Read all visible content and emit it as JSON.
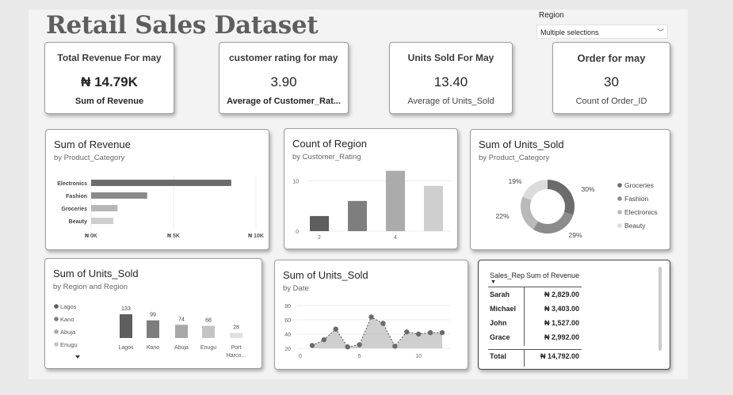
{
  "page": {
    "title": "Retail Sales Dataset"
  },
  "slicer": {
    "label": "Region",
    "value": "Multiple selections"
  },
  "kpis": [
    {
      "title": "Total Revenue For may",
      "value": "₦ 14.79K",
      "subtitle": "Sum of Revenue"
    },
    {
      "title": "customer rating  for may",
      "value": "3.90",
      "subtitle": "Average of Customer_Rat..."
    },
    {
      "title": "Units Sold For May",
      "value": "13.40",
      "subtitle": "Average of Units_Sold"
    },
    {
      "title": "Order for may",
      "value": "30",
      "subtitle": "Count of Order_ID"
    }
  ],
  "revenue_by_category": {
    "title": "Sum of Revenue",
    "subtitle": "by Product_Category",
    "x_ticks": [
      "₦ 0K",
      "₦ 5K",
      "₦ 10K"
    ]
  },
  "region_by_rating": {
    "title": "Count of Region",
    "subtitle": "by Customer_Rating",
    "y_ticks": [
      "0",
      "10"
    ],
    "x_ticks": [
      "2",
      "4"
    ]
  },
  "units_by_category": {
    "title": "Sum of Units_Sold",
    "subtitle": "by Product_Category",
    "slice_labels": [
      "30%",
      "29%",
      "22%",
      "19%"
    ]
  },
  "units_by_region": {
    "title": "Sum of Units_Sold",
    "subtitle": "by Region and Region",
    "legend": [
      "Lagos",
      "Kano",
      "Abuja",
      "Enugu"
    ],
    "x_labels": [
      "Lagos",
      "Kano",
      "Abuja",
      "Enugu",
      "Port",
      "Harco..."
    ]
  },
  "units_by_date": {
    "title": "Sum of Units_Sold",
    "subtitle": "by Date",
    "y_ticks": [
      "20",
      "40",
      "60",
      "80"
    ],
    "x_ticks": [
      "0",
      "5",
      "10"
    ]
  },
  "sales_table": {
    "columns": [
      "Sales_Rep",
      "Sum of Revenue"
    ],
    "rows": [
      {
        "rep": "Sarah",
        "revenue": "₦ 2,829.00"
      },
      {
        "rep": "Michael",
        "revenue": "₦ 3,403.00"
      },
      {
        "rep": "John",
        "revenue": "₦ 1,527.00"
      },
      {
        "rep": "Grace",
        "revenue": "₦ 2,992.00"
      }
    ],
    "total_label": "Total",
    "total_value": "₦ 14,792.00"
  },
  "chart_data": [
    {
      "type": "bar",
      "orientation": "horizontal",
      "title": "Sum of Revenue",
      "categories": [
        "Electronics",
        "Fashion",
        "Groceries",
        "Beauty"
      ],
      "values": [
        8500,
        3400,
        1600,
        1350
      ],
      "xlim": [
        0,
        10000
      ],
      "colors": [
        "#6b6b6b",
        "#8a8a8a",
        "#b6b6b6",
        "#cfcfcf"
      ]
    },
    {
      "type": "bar",
      "title": "Count of Region",
      "x": [
        2,
        3,
        4,
        5
      ],
      "values": [
        3,
        6,
        12,
        9
      ],
      "ylim": [
        0,
        14
      ],
      "colors": [
        "#5e5e5e",
        "#7e7e7e",
        "#ababab",
        "#cfcfcf"
      ]
    },
    {
      "type": "pie",
      "donut": true,
      "title": "Sum of Units_Sold",
      "categories": [
        "Groceries",
        "Fashion",
        "Electronics",
        "Beauty"
      ],
      "values": [
        30,
        29,
        22,
        19
      ],
      "legend_position": "right",
      "colors": [
        "#6b6b6b",
        "#8c8c8c",
        "#b9b9b9",
        "#dcdcdc"
      ]
    },
    {
      "type": "bar",
      "title": "Sum of Units_Sold",
      "categories": [
        "Lagos",
        "Kano",
        "Abuja",
        "Enugu",
        "Port Harco..."
      ],
      "values": [
        133,
        99,
        74,
        68,
        28
      ],
      "legend_position": "left",
      "colors": [
        "#5e5e5e",
        "#7d7d7d",
        "#a8a8a8",
        "#c4c4c4",
        "#e0e0e0"
      ]
    },
    {
      "type": "area",
      "title": "Sum of Units_Sold",
      "x": [
        1,
        2,
        3,
        4,
        5,
        6,
        7,
        8,
        9,
        10,
        11,
        12
      ],
      "values": [
        24,
        32,
        47,
        22,
        25,
        64,
        55,
        23,
        43,
        40,
        42,
        42
      ],
      "ylim": [
        20,
        80
      ],
      "xlim": [
        0,
        12
      ],
      "colors": [
        "#bfbfbf"
      ]
    }
  ]
}
